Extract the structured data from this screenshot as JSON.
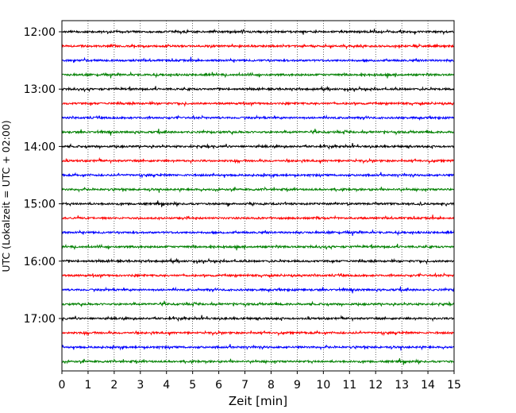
{
  "chart_data": {
    "type": "line",
    "title": "",
    "xlabel": "Zeit  [min]",
    "ylabel": "UTC (Lokalzeit = UTC + 02:00)",
    "xlim": [
      0,
      15
    ],
    "x_ticks": [
      "0",
      "1",
      "2",
      "3",
      "4",
      "5",
      "6",
      "7",
      "8",
      "9",
      "10",
      "11",
      "12",
      "13",
      "14",
      "15"
    ],
    "y_ticks": [
      "12:00",
      "13:00",
      "14:00",
      "15:00",
      "16:00",
      "17:00"
    ],
    "grid": "vertical dotted",
    "trace_colors": [
      "#000000",
      "#ff0000",
      "#0000ff",
      "#008000"
    ],
    "series": [
      {
        "start": "12:00",
        "color": "#000000"
      },
      {
        "start": "12:15",
        "color": "#ff0000"
      },
      {
        "start": "12:30",
        "color": "#0000ff"
      },
      {
        "start": "12:45",
        "color": "#008000"
      },
      {
        "start": "13:00",
        "color": "#000000"
      },
      {
        "start": "13:15",
        "color": "#ff0000"
      },
      {
        "start": "13:30",
        "color": "#0000ff"
      },
      {
        "start": "13:45",
        "color": "#008000"
      },
      {
        "start": "14:00",
        "color": "#000000"
      },
      {
        "start": "14:15",
        "color": "#ff0000"
      },
      {
        "start": "14:30",
        "color": "#0000ff"
      },
      {
        "start": "14:45",
        "color": "#008000"
      },
      {
        "start": "15:00",
        "color": "#000000"
      },
      {
        "start": "15:15",
        "color": "#ff0000"
      },
      {
        "start": "15:30",
        "color": "#0000ff"
      },
      {
        "start": "15:45",
        "color": "#008000"
      },
      {
        "start": "16:00",
        "color": "#000000"
      },
      {
        "start": "16:15",
        "color": "#ff0000"
      },
      {
        "start": "16:30",
        "color": "#0000ff"
      },
      {
        "start": "16:45",
        "color": "#008000"
      },
      {
        "start": "17:00",
        "color": "#000000"
      },
      {
        "start": "17:15",
        "color": "#ff0000"
      },
      {
        "start": "17:30",
        "color": "#0000ff"
      },
      {
        "start": "17:45",
        "color": "#008000"
      }
    ]
  }
}
